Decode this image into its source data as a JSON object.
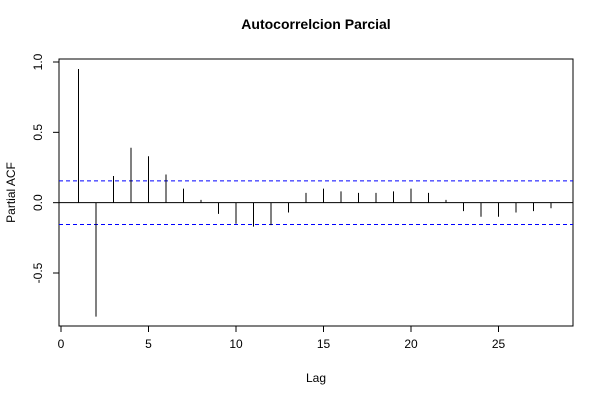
{
  "chart_data": {
    "type": "bar",
    "title": "Autocorrelcion Parcial",
    "xlabel": "Lag",
    "ylabel": "Partial ACF",
    "xlim": [
      0,
      29
    ],
    "ylim": [
      -0.85,
      1.0
    ],
    "xticks": [
      0,
      5,
      10,
      15,
      20,
      25
    ],
    "yticks": [
      -0.5,
      0.0,
      0.5,
      1.0
    ],
    "ytick_labels": [
      "-0.5",
      "0.0",
      "0.5",
      "1.0"
    ],
    "grid": false,
    "confidence_bounds": [
      -0.155,
      0.155
    ],
    "confidence_color": "#0000ff",
    "bar_color": "#000000",
    "lags": [
      1,
      2,
      3,
      4,
      5,
      6,
      7,
      8,
      9,
      10,
      11,
      12,
      13,
      14,
      15,
      16,
      17,
      18,
      19,
      20,
      21,
      22,
      23,
      24,
      25,
      26,
      27,
      28
    ],
    "values": [
      0.95,
      -0.81,
      0.19,
      0.39,
      0.33,
      0.2,
      0.1,
      0.02,
      -0.08,
      -0.15,
      -0.17,
      -0.16,
      -0.07,
      0.07,
      0.1,
      0.08,
      0.07,
      0.07,
      0.08,
      0.1,
      0.07,
      0.02,
      -0.06,
      -0.1,
      -0.1,
      -0.07,
      -0.06,
      -0.04
    ]
  }
}
